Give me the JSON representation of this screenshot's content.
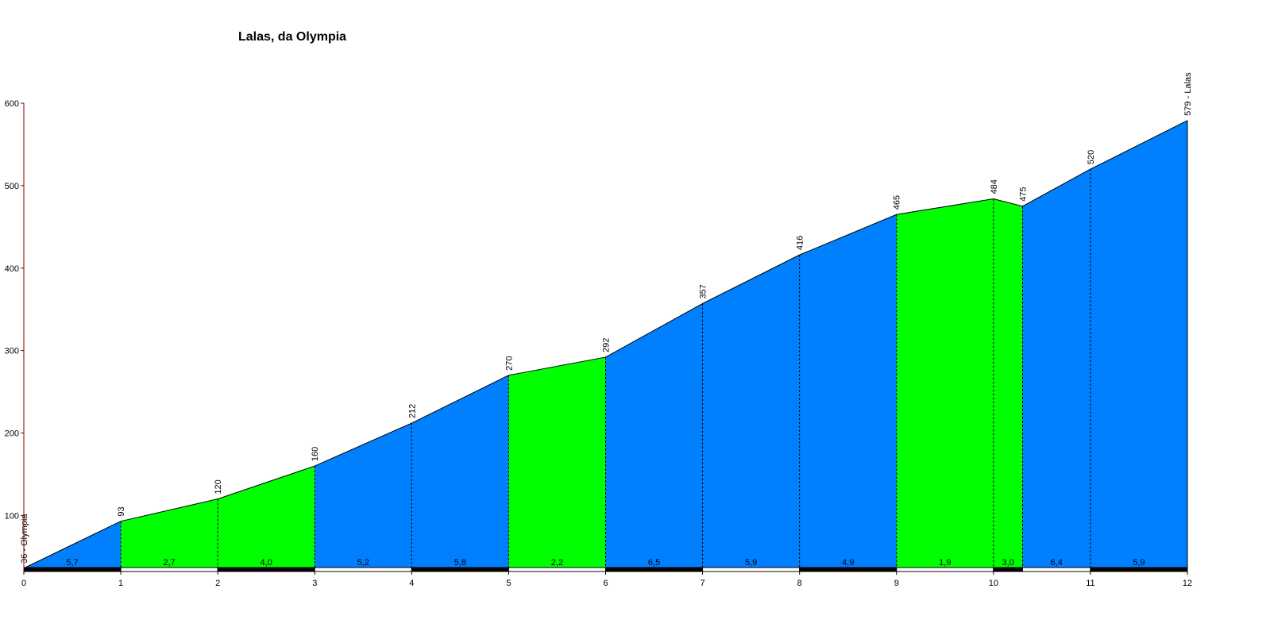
{
  "chart_data": {
    "type": "area",
    "title": "Lalas, da Olympia",
    "xlabel": "",
    "ylabel": "",
    "xlim": [
      0,
      12
    ],
    "ylim": [
      33,
      600
    ],
    "x_ticks": [
      "0",
      "1",
      "2",
      "3",
      "4",
      "5",
      "6",
      "7",
      "8",
      "9",
      "10",
      "11",
      "12"
    ],
    "y_ticks": [
      100,
      200,
      300,
      400,
      500,
      600
    ],
    "points": [
      {
        "x": 0,
        "y": 36,
        "label": "36 - Olympia"
      },
      {
        "x": 1,
        "y": 93,
        "label": "93"
      },
      {
        "x": 2,
        "y": 120,
        "label": "120"
      },
      {
        "x": 3,
        "y": 160,
        "label": "160"
      },
      {
        "x": 4,
        "y": 212,
        "label": "212"
      },
      {
        "x": 5,
        "y": 270,
        "label": "270"
      },
      {
        "x": 6,
        "y": 292,
        "label": "292"
      },
      {
        "x": 7,
        "y": 357,
        "label": "357"
      },
      {
        "x": 8,
        "y": 416,
        "label": "416"
      },
      {
        "x": 9,
        "y": 465,
        "label": "465"
      },
      {
        "x": 10,
        "y": 484,
        "label": "484"
      },
      {
        "x": 10.3,
        "y": 475,
        "label": "475"
      },
      {
        "x": 11,
        "y": 520,
        "label": "520"
      },
      {
        "x": 12,
        "y": 579,
        "label": "579 - Lalas"
      }
    ],
    "segments": [
      {
        "from": 0,
        "to": 1,
        "gradient": "5,7",
        "color": "#0080ff"
      },
      {
        "from": 1,
        "to": 2,
        "gradient": "2,7",
        "color": "#00ff00"
      },
      {
        "from": 2,
        "to": 3,
        "gradient": "4,0",
        "color": "#00ff00"
      },
      {
        "from": 3,
        "to": 4,
        "gradient": "5,2",
        "color": "#0080ff"
      },
      {
        "from": 4,
        "to": 5,
        "gradient": "5,8",
        "color": "#0080ff"
      },
      {
        "from": 5,
        "to": 6,
        "gradient": "2,2",
        "color": "#00ff00"
      },
      {
        "from": 6,
        "to": 7,
        "gradient": "6,5",
        "color": "#0080ff"
      },
      {
        "from": 7,
        "to": 8,
        "gradient": "5,9",
        "color": "#0080ff"
      },
      {
        "from": 8,
        "to": 9,
        "gradient": "4,9",
        "color": "#0080ff"
      },
      {
        "from": 9,
        "to": 10,
        "gradient": "1,9",
        "color": "#00ff00"
      },
      {
        "from": 10,
        "to": 10.3,
        "gradient": "3,0",
        "color": "#00ff00"
      },
      {
        "from": 10.3,
        "to": 11,
        "gradient": "6,4",
        "color": "#0080ff"
      },
      {
        "from": 11,
        "to": 12,
        "gradient": "5,9",
        "color": "#0080ff"
      }
    ],
    "grid": false
  }
}
